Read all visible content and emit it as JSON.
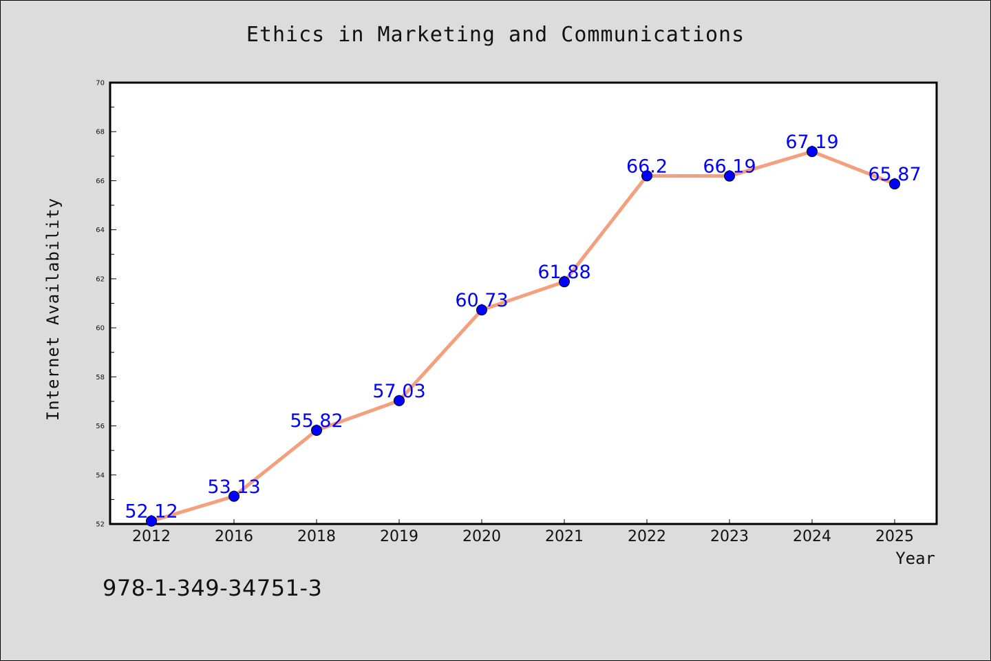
{
  "chart_data": {
    "type": "line",
    "title": "Ethics in Marketing and Communications",
    "xlabel": "Year",
    "ylabel": "Internet Availability",
    "categories": [
      "2012",
      "2016",
      "2018",
      "2019",
      "2020",
      "2021",
      "2022",
      "2023",
      "2024",
      "2025"
    ],
    "values": [
      52.12,
      53.13,
      55.82,
      57.03,
      60.73,
      61.88,
      66.2,
      66.19,
      67.19,
      65.87
    ],
    "data_labels": [
      "52.12",
      "53.13",
      "55.82",
      "57.03",
      "60.73",
      "61.88",
      "66.2",
      "66.19",
      "67.19",
      "65.87"
    ],
    "ylim": [
      52,
      70
    ],
    "yticks": [
      52,
      54,
      56,
      58,
      60,
      62,
      64,
      66,
      68,
      70
    ],
    "grid": false,
    "line_color": "#f59f7c",
    "marker_color": "#0000ff",
    "label_color": "#0000ff"
  },
  "footnote": "978-1-349-34751-3"
}
